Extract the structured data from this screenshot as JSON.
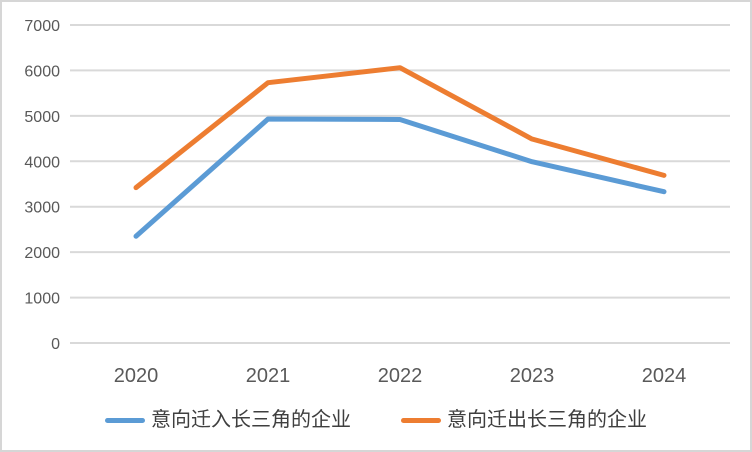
{
  "chart_data": {
    "type": "line",
    "title": "",
    "xlabel": "",
    "ylabel": "",
    "categories": [
      "2020",
      "2021",
      "2022",
      "2023",
      "2024"
    ],
    "series": [
      {
        "name": "意向迁入长三角的企业",
        "color": "#5B9BD5",
        "values": [
          2350,
          4930,
          4920,
          3990,
          3330
        ]
      },
      {
        "name": "意向迁出长三角的企业",
        "color": "#ED7D31",
        "values": [
          3420,
          5730,
          6060,
          4490,
          3690
        ]
      }
    ],
    "ylim": [
      0,
      7000
    ],
    "y_ticks": [
      0,
      1000,
      2000,
      3000,
      4000,
      5000,
      6000,
      7000
    ],
    "grid": true,
    "legend_position": "bottom"
  },
  "colors": {
    "gridline": "#D9D9D9",
    "axis_text": "#595959",
    "legend_text": "#3F3F3F",
    "series_blue": "#5B9BD5",
    "series_orange": "#ED7D31",
    "frame_border": "#D6D6D6",
    "background": "#FFFFFF"
  }
}
